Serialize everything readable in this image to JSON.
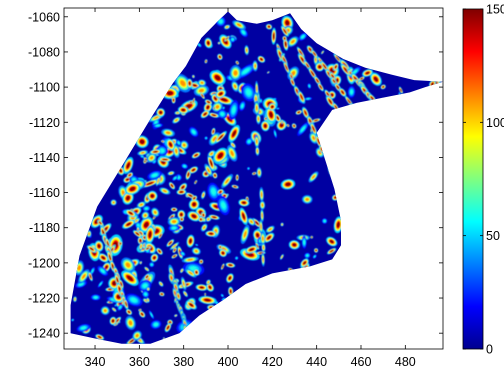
{
  "chart_data": {
    "type": "heatmap",
    "title": "",
    "xlabel": "",
    "ylabel": "",
    "xlim": [
      326,
      497
    ],
    "ylim": [
      -1249,
      -1055
    ],
    "x_ticks": [
      340,
      360,
      380,
      400,
      420,
      440,
      460,
      480
    ],
    "y_ticks": [
      -1060,
      -1080,
      -1100,
      -1120,
      -1140,
      -1160,
      -1180,
      -1200,
      -1220,
      -1240
    ],
    "colorbar": {
      "colormap": "jet",
      "range": [
        0,
        150
      ],
      "ticks": [
        0,
        50,
        100,
        150
      ]
    },
    "background_value": 5,
    "grid": false,
    "region_outline": [
      [
        400,
        -1057
      ],
      [
        404,
        -1062
      ],
      [
        413,
        -1064
      ],
      [
        420,
        -1062
      ],
      [
        428,
        -1058
      ],
      [
        433,
        -1067
      ],
      [
        440,
        -1075
      ],
      [
        452,
        -1084
      ],
      [
        462,
        -1089
      ],
      [
        474,
        -1093
      ],
      [
        484,
        -1096
      ],
      [
        497,
        -1097
      ],
      [
        489,
        -1100
      ],
      [
        482,
        -1103
      ],
      [
        470,
        -1106
      ],
      [
        458,
        -1109
      ],
      [
        447,
        -1113
      ],
      [
        440,
        -1126
      ],
      [
        444,
        -1142
      ],
      [
        448,
        -1158
      ],
      [
        451,
        -1176
      ],
      [
        451,
        -1190
      ],
      [
        447,
        -1198
      ],
      [
        437,
        -1202
      ],
      [
        420,
        -1206
      ],
      [
        408,
        -1212
      ],
      [
        398,
        -1221
      ],
      [
        387,
        -1230
      ],
      [
        378,
        -1240
      ],
      [
        365,
        -1246
      ],
      [
        352,
        -1246
      ],
      [
        340,
        -1243
      ],
      [
        329,
        -1240
      ],
      [
        329,
        -1224
      ],
      [
        333,
        -1196
      ],
      [
        341,
        -1168
      ],
      [
        354,
        -1141
      ],
      [
        366,
        -1116
      ],
      [
        375,
        -1098
      ],
      [
        381,
        -1088
      ],
      [
        388,
        -1072
      ],
      [
        395,
        -1063
      ]
    ],
    "hotspot_bands": [
      {
        "from": [
          426,
          -1068
        ],
        "to": [
          463,
          -1140
        ],
        "value": 145
      },
      {
        "from": [
          437,
          -1078
        ],
        "to": [
          466,
          -1128
        ],
        "value": 145
      },
      {
        "from": [
          421,
          -1073
        ],
        "to": [
          447,
          -1148
        ],
        "value": 140
      },
      {
        "from": [
          450,
          -1084
        ],
        "to": [
          472,
          -1118
        ],
        "value": 145
      },
      {
        "from": [
          412,
          -1088
        ],
        "to": [
          416,
          -1198
        ],
        "value": 110
      },
      {
        "from": [
          344,
          -1183
        ],
        "to": [
          354,
          -1224
        ],
        "value": 150
      },
      {
        "from": [
          373,
          -1200
        ],
        "to": [
          381,
          -1238
        ],
        "value": 120
      }
    ],
    "hotspot_density": "high in western lobe (x 335-400), moderate near center, low in east-central region (x 415-445, y -1130 to -1180)"
  }
}
